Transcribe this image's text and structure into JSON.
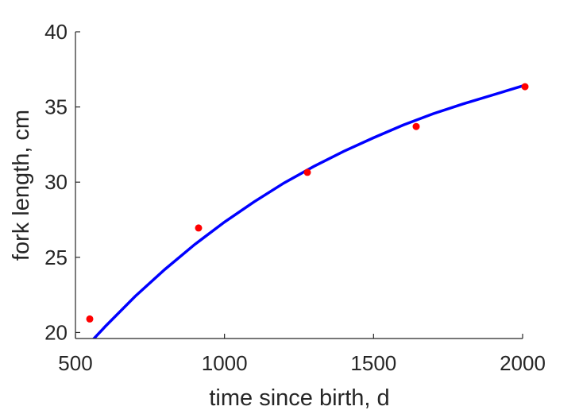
{
  "chart_data": {
    "type": "scatter",
    "xlabel": "time since birth, d",
    "ylabel": "fork length, cm",
    "xlim": [
      500,
      2000
    ],
    "ylim": [
      19.6,
      40
    ],
    "xticks": [
      500,
      1000,
      1500,
      2000
    ],
    "yticks": [
      20,
      25,
      30,
      35,
      40
    ],
    "x_tick_labels": [
      "500",
      "1000",
      "1500",
      "2000"
    ],
    "y_tick_labels": [
      "20",
      "25",
      "30",
      "35",
      "40"
    ],
    "grid": false,
    "points": {
      "x": [
        548,
        913,
        1278,
        1643,
        2008
      ],
      "y": [
        20.9,
        26.95,
        30.65,
        33.7,
        36.35
      ],
      "color": "#ff0000"
    },
    "fit_line": {
      "x": [
        548,
        600,
        700,
        800,
        900,
        1000,
        1100,
        1200,
        1300,
        1400,
        1500,
        1600,
        1700,
        1800,
        1900,
        2008
      ],
      "y": [
        19.3,
        20.4,
        22.4,
        24.2,
        25.85,
        27.35,
        28.7,
        29.95,
        31.05,
        32.05,
        32.95,
        33.8,
        34.55,
        35.2,
        35.8,
        36.45
      ],
      "color": "#0000ff"
    }
  }
}
